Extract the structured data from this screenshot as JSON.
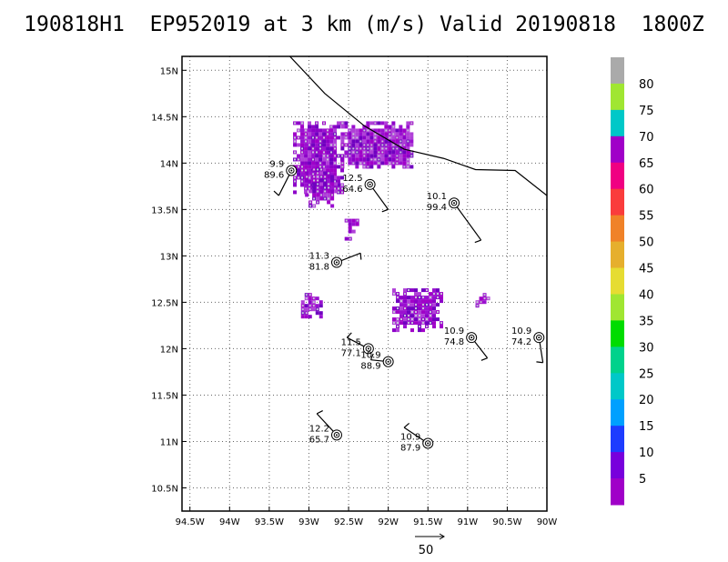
{
  "title": "190818H1  EP952019 at 3 km (m/s) Valid 20190818  1800Z",
  "chart_data": {
    "type": "wind-plot",
    "x_range": [
      -94.6,
      -90.0
    ],
    "y_range": [
      10.25,
      15.15
    ],
    "x_ticks": [
      {
        "v": -94.5,
        "label": "94.5W"
      },
      {
        "v": -94,
        "label": "94W"
      },
      {
        "v": -93.5,
        "label": "93.5W"
      },
      {
        "v": -93,
        "label": "93W"
      },
      {
        "v": -92.5,
        "label": "92.5W"
      },
      {
        "v": -92,
        "label": "92W"
      },
      {
        "v": -91.5,
        "label": "91.5W"
      },
      {
        "v": -91,
        "label": "91W"
      },
      {
        "v": -90.5,
        "label": "90.5W"
      },
      {
        "v": -90,
        "label": "90W"
      }
    ],
    "y_ticks": [
      {
        "v": 10.5,
        "label": "10.5N"
      },
      {
        "v": 11,
        "label": "11N"
      },
      {
        "v": 11.5,
        "label": "11.5N"
      },
      {
        "v": 12,
        "label": "12N"
      },
      {
        "v": 12.5,
        "label": "12.5N"
      },
      {
        "v": 13,
        "label": "13N"
      },
      {
        "v": 13.5,
        "label": "13.5N"
      },
      {
        "v": 14,
        "label": "14N"
      },
      {
        "v": 14.5,
        "label": "14.5N"
      },
      {
        "v": 15,
        "label": "15N"
      }
    ],
    "grid": true,
    "coastline": [
      [
        -93.35,
        15.25
      ],
      [
        -92.8,
        14.75
      ],
      [
        -92.3,
        14.4
      ],
      [
        -91.8,
        14.15
      ],
      [
        -91.3,
        14.05
      ],
      [
        -90.9,
        13.93
      ],
      [
        -90.4,
        13.92
      ],
      [
        -90.0,
        13.65
      ]
    ],
    "observations": [
      {
        "lon": -93.22,
        "lat": 13.92,
        "speed": "9.9",
        "dir": "89.6",
        "barb_to": [
          -93.38,
          13.65
        ]
      },
      {
        "lon": -92.23,
        "lat": 13.77,
        "speed": "12.5",
        "dir": "64.6",
        "barb_to": [
          -92.0,
          13.5
        ]
      },
      {
        "lon": -91.17,
        "lat": 13.57,
        "speed": "10.1",
        "dir": "99.4",
        "barb_to": [
          -90.83,
          13.17
        ]
      },
      {
        "lon": -92.65,
        "lat": 12.93,
        "speed": "11.3",
        "dir": "81.8",
        "barb_to": [
          -92.35,
          13.03
        ]
      },
      {
        "lon": -92.25,
        "lat": 12.0,
        "speed": "11.5",
        "dir": "77.1",
        "barb_to": [
          -92.52,
          12.12
        ]
      },
      {
        "lon": -92.0,
        "lat": 11.86,
        "speed": "10.9",
        "dir": "88.9",
        "barb_to": [
          -92.22,
          11.88
        ]
      },
      {
        "lon": -90.95,
        "lat": 12.12,
        "speed": "10.9",
        "dir": "74.8",
        "barb_to": [
          -90.75,
          11.9
        ]
      },
      {
        "lon": -90.1,
        "lat": 12.12,
        "speed": "10.9",
        "dir": "74.2",
        "barb_to": [
          -90.05,
          11.85
        ]
      },
      {
        "lon": -92.65,
        "lat": 11.07,
        "speed": "12.2",
        "dir": "65.7",
        "barb_to": [
          -92.9,
          11.3
        ]
      },
      {
        "lon": -91.5,
        "lat": 10.98,
        "speed": "10.9",
        "dir": "87.9",
        "barb_to": [
          -91.8,
          11.15
        ]
      }
    ],
    "wind_regions": [
      {
        "name": "north-cluster-west",
        "lon": [
          -93.2,
          -92.6
        ],
        "lat": [
          13.7,
          14.45
        ]
      },
      {
        "name": "north-cluster-east",
        "lon": [
          -92.6,
          -91.7
        ],
        "lat": [
          13.95,
          14.45
        ]
      },
      {
        "name": "north-cluster-south",
        "lon": [
          -93.05,
          -92.65
        ],
        "lat": [
          13.55,
          13.95
        ]
      },
      {
        "name": "central-small",
        "lon": [
          -92.55,
          -92.4
        ],
        "lat": [
          13.2,
          13.4
        ]
      },
      {
        "name": "west-small",
        "lon": [
          -93.1,
          -92.85
        ],
        "lat": [
          12.35,
          12.6
        ]
      },
      {
        "name": "south-cluster",
        "lon": [
          -91.95,
          -91.35
        ],
        "lat": [
          12.2,
          12.65
        ]
      },
      {
        "name": "east-small",
        "lon": [
          -90.9,
          -90.75
        ],
        "lat": [
          12.45,
          12.6
        ]
      }
    ],
    "colorbar": {
      "ticks": [
        "5",
        "10",
        "15",
        "20",
        "25",
        "30",
        "35",
        "40",
        "45",
        "50",
        "55",
        "60",
        "65",
        "70",
        "75",
        "80"
      ],
      "colors": [
        "#a000c8",
        "#7800dc",
        "#1e3cff",
        "#00a0ff",
        "#00c8c8",
        "#00d28c",
        "#00dc00",
        "#a0e632",
        "#e6dc32",
        "#e6af2d",
        "#f08228",
        "#fa3c3c",
        "#f00082",
        "#a000c8",
        "#00c8c8",
        "#a0e632",
        "#aaaaaa"
      ]
    },
    "scale_vector": {
      "label": "50"
    }
  }
}
